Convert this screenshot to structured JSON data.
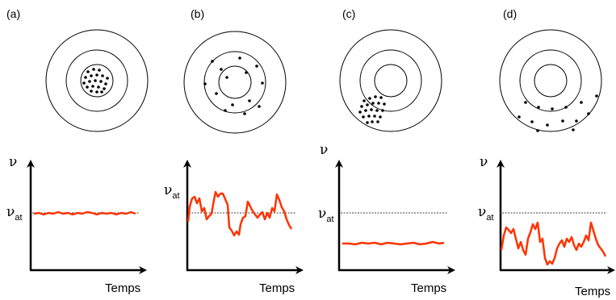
{
  "panels": [
    {
      "id": "a",
      "label": "(a)",
      "y_label": "ν",
      "threshold_label": "ν",
      "threshold_sub": "at",
      "x_label": "Temps"
    },
    {
      "id": "b",
      "label": "(b)",
      "y_label": "ν",
      "threshold_label": "ν",
      "threshold_sub": "at",
      "x_label": "Temps"
    },
    {
      "id": "c",
      "label": "(c)",
      "y_label": "ν",
      "threshold_label": "ν",
      "threshold_sub": "at",
      "x_label": "Temps"
    },
    {
      "id": "d",
      "label": "(d)",
      "y_label": "ν",
      "threshold_label": "ν",
      "threshold_sub": "at",
      "x_label": "Temps"
    }
  ],
  "colors": {
    "trace": "#ff3300",
    "ink": "#000000"
  }
}
